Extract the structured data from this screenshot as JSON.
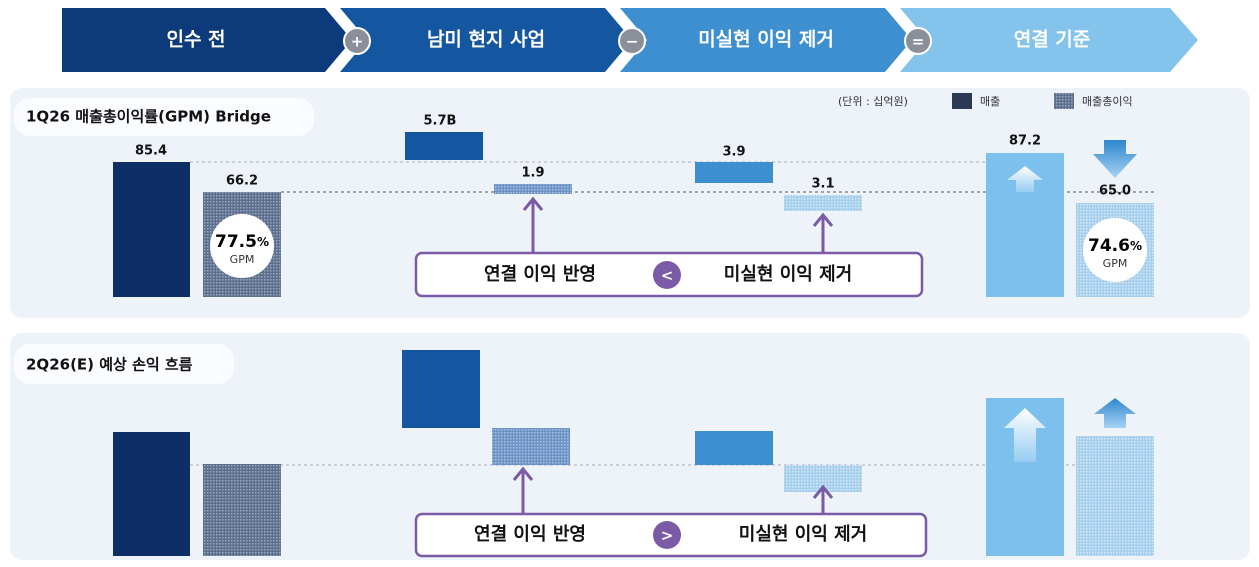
{
  "header": {
    "steps": [
      "인수 전",
      "남미 현지 사업",
      "미실현 이익 제거",
      "연결 기준"
    ],
    "operators": [
      "+",
      "−",
      "="
    ]
  },
  "panel1": {
    "title": "1Q26 매출총이익률(GPM) Bridge",
    "unit": "(단위 : 십억원)",
    "legend": [
      "매출",
      "매출총이익"
    ],
    "labels": [
      "85.4",
      "66.2",
      "5.7B",
      "1.9",
      "3.9",
      "3.1",
      "87.2",
      "65.0"
    ],
    "gpm": [
      {
        "value": "77.5",
        "unit": "%",
        "label": "GPM"
      },
      {
        "value": "74.6",
        "unit": "%",
        "label": "GPM"
      }
    ],
    "callout": {
      "left": "연결 이익 반영",
      "symbol": "<",
      "right": "미실현 이익 제거"
    }
  },
  "panel2": {
    "title": "2Q26(E) 예상 손익 흐름",
    "callout": {
      "left": "연결 이익 반영",
      "symbol": ">",
      "right": "미실현 이익 제거"
    }
  }
}
